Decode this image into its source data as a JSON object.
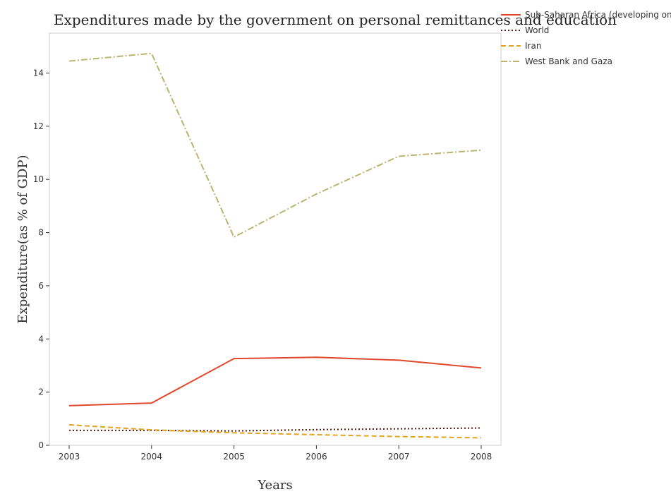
{
  "chart_data": {
    "type": "line",
    "title": "Expenditures made by the government on personal remittances and education",
    "xlabel": "Years",
    "ylabel": "Expenditure(as % of GDP)",
    "categories": [
      "2003",
      "2004",
      "2005",
      "2006",
      "2007",
      "2008"
    ],
    "ylim": [
      0,
      15.5
    ],
    "yticks": [
      0,
      2,
      4,
      6,
      8,
      10,
      12,
      14
    ],
    "legend_position": "top-right",
    "grid": false,
    "series": [
      {
        "name": "Sub-Saharan Africa (developing only)",
        "color": "#e0472b",
        "dash": "solid",
        "values": [
          1.49,
          1.59,
          3.26,
          3.31,
          3.2,
          2.91
        ]
      },
      {
        "name": "World",
        "color": "#5a1a0e",
        "dash": "dotted",
        "values": [
          0.56,
          0.56,
          0.54,
          0.59,
          0.62,
          0.65
        ]
      },
      {
        "name": "Iran",
        "color": "#e2a41f",
        "dash": "dashed",
        "values": [
          0.77,
          0.58,
          0.47,
          0.4,
          0.33,
          0.28
        ]
      },
      {
        "name": "West Bank and Gaza",
        "color": "#b9b56c",
        "dash": "dashdot",
        "values": [
          14.45,
          14.74,
          7.83,
          9.45,
          10.87,
          11.1
        ]
      }
    ]
  }
}
